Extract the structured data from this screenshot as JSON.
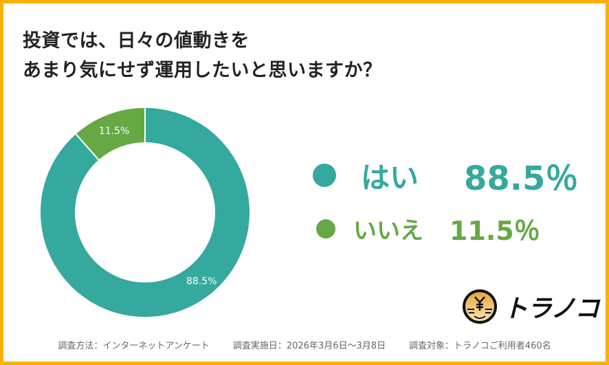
{
  "title": [
    "投資では、日々の値動きを",
    "あまり気にせず運用したいと思いますか？"
  ],
  "chart_data": {
    "type": "pie",
    "donut": true,
    "title": "投資では、日々の値動きをあまり気にせず運用したいと思いますか？",
    "categories": [
      "はい",
      "いいえ"
    ],
    "values": [
      88.5,
      11.5
    ],
    "data_labels": [
      "88.5%",
      "11.5%"
    ],
    "colors": [
      "#35A99E",
      "#65A844"
    ],
    "legend_values": [
      "88.5％",
      "11.5％"
    ],
    "legend": "right"
  },
  "logo": {
    "text": "トラノコ"
  },
  "footer": [
    "調査方法：インターネットアンケート",
    "調査実施日：2026年3月6日〜3月8日",
    "調査対象：トラノコご利用者460名"
  ]
}
